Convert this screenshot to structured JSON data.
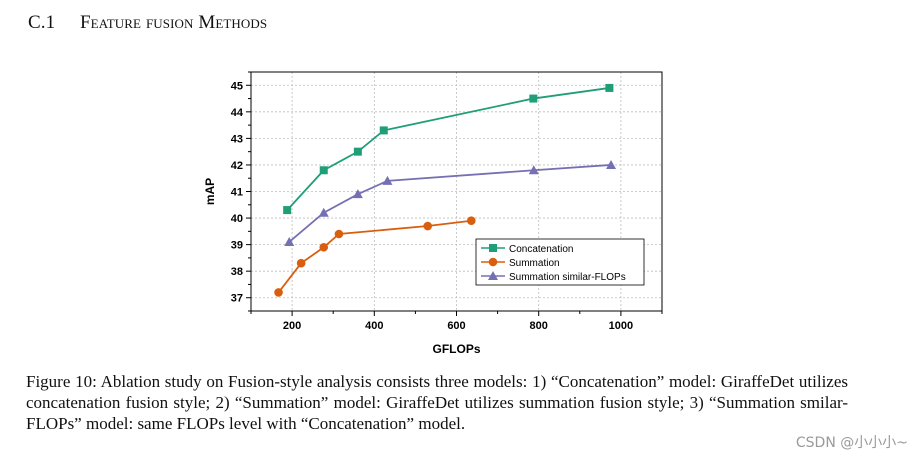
{
  "section": {
    "number": "C.1",
    "title": "Feature fusion Methods"
  },
  "caption": "Figure 10: Ablation study on Fusion-style analysis consists three models: 1) “Concatenation” model: GiraffeDet utilizes concatenation fusion style; 2) “Summation” model: GiraffeDet utilizes summation fusion style; 3) “Summation smilar-FLOPs” model: same FLOPs level with “Concatenation” model.",
  "watermark": "CSDN @小小小~",
  "chart_data": {
    "type": "line",
    "title": "",
    "xlabel": "GFLOPs",
    "ylabel": "mAP",
    "xlim": [
      100,
      1100
    ],
    "ylim": [
      36.5,
      45.5
    ],
    "xticks": [
      200,
      400,
      600,
      800,
      1000
    ],
    "yticks": [
      37,
      38,
      39,
      40,
      41,
      42,
      43,
      44,
      45
    ],
    "grid": true,
    "legend_position": "lower-right",
    "series": [
      {
        "name": "Concatenation",
        "color": "#1f9e78",
        "marker": "square",
        "x": [
          188,
          277,
          360,
          423,
          787,
          972
        ],
        "y": [
          40.3,
          41.8,
          42.5,
          43.3,
          44.5,
          44.9
        ]
      },
      {
        "name": "Summation",
        "color": "#d95f0e",
        "marker": "circle",
        "x": [
          167,
          222,
          277,
          314,
          530,
          636
        ],
        "y": [
          37.2,
          38.3,
          38.9,
          39.4,
          39.7,
          39.9
        ]
      },
      {
        "name": "Summation similar-FLOPs",
        "color": "#7570b3",
        "marker": "triangle",
        "x": [
          193,
          277,
          360,
          432,
          788,
          976
        ],
        "y": [
          39.1,
          40.2,
          40.9,
          41.4,
          41.8,
          42.0
        ]
      }
    ]
  }
}
